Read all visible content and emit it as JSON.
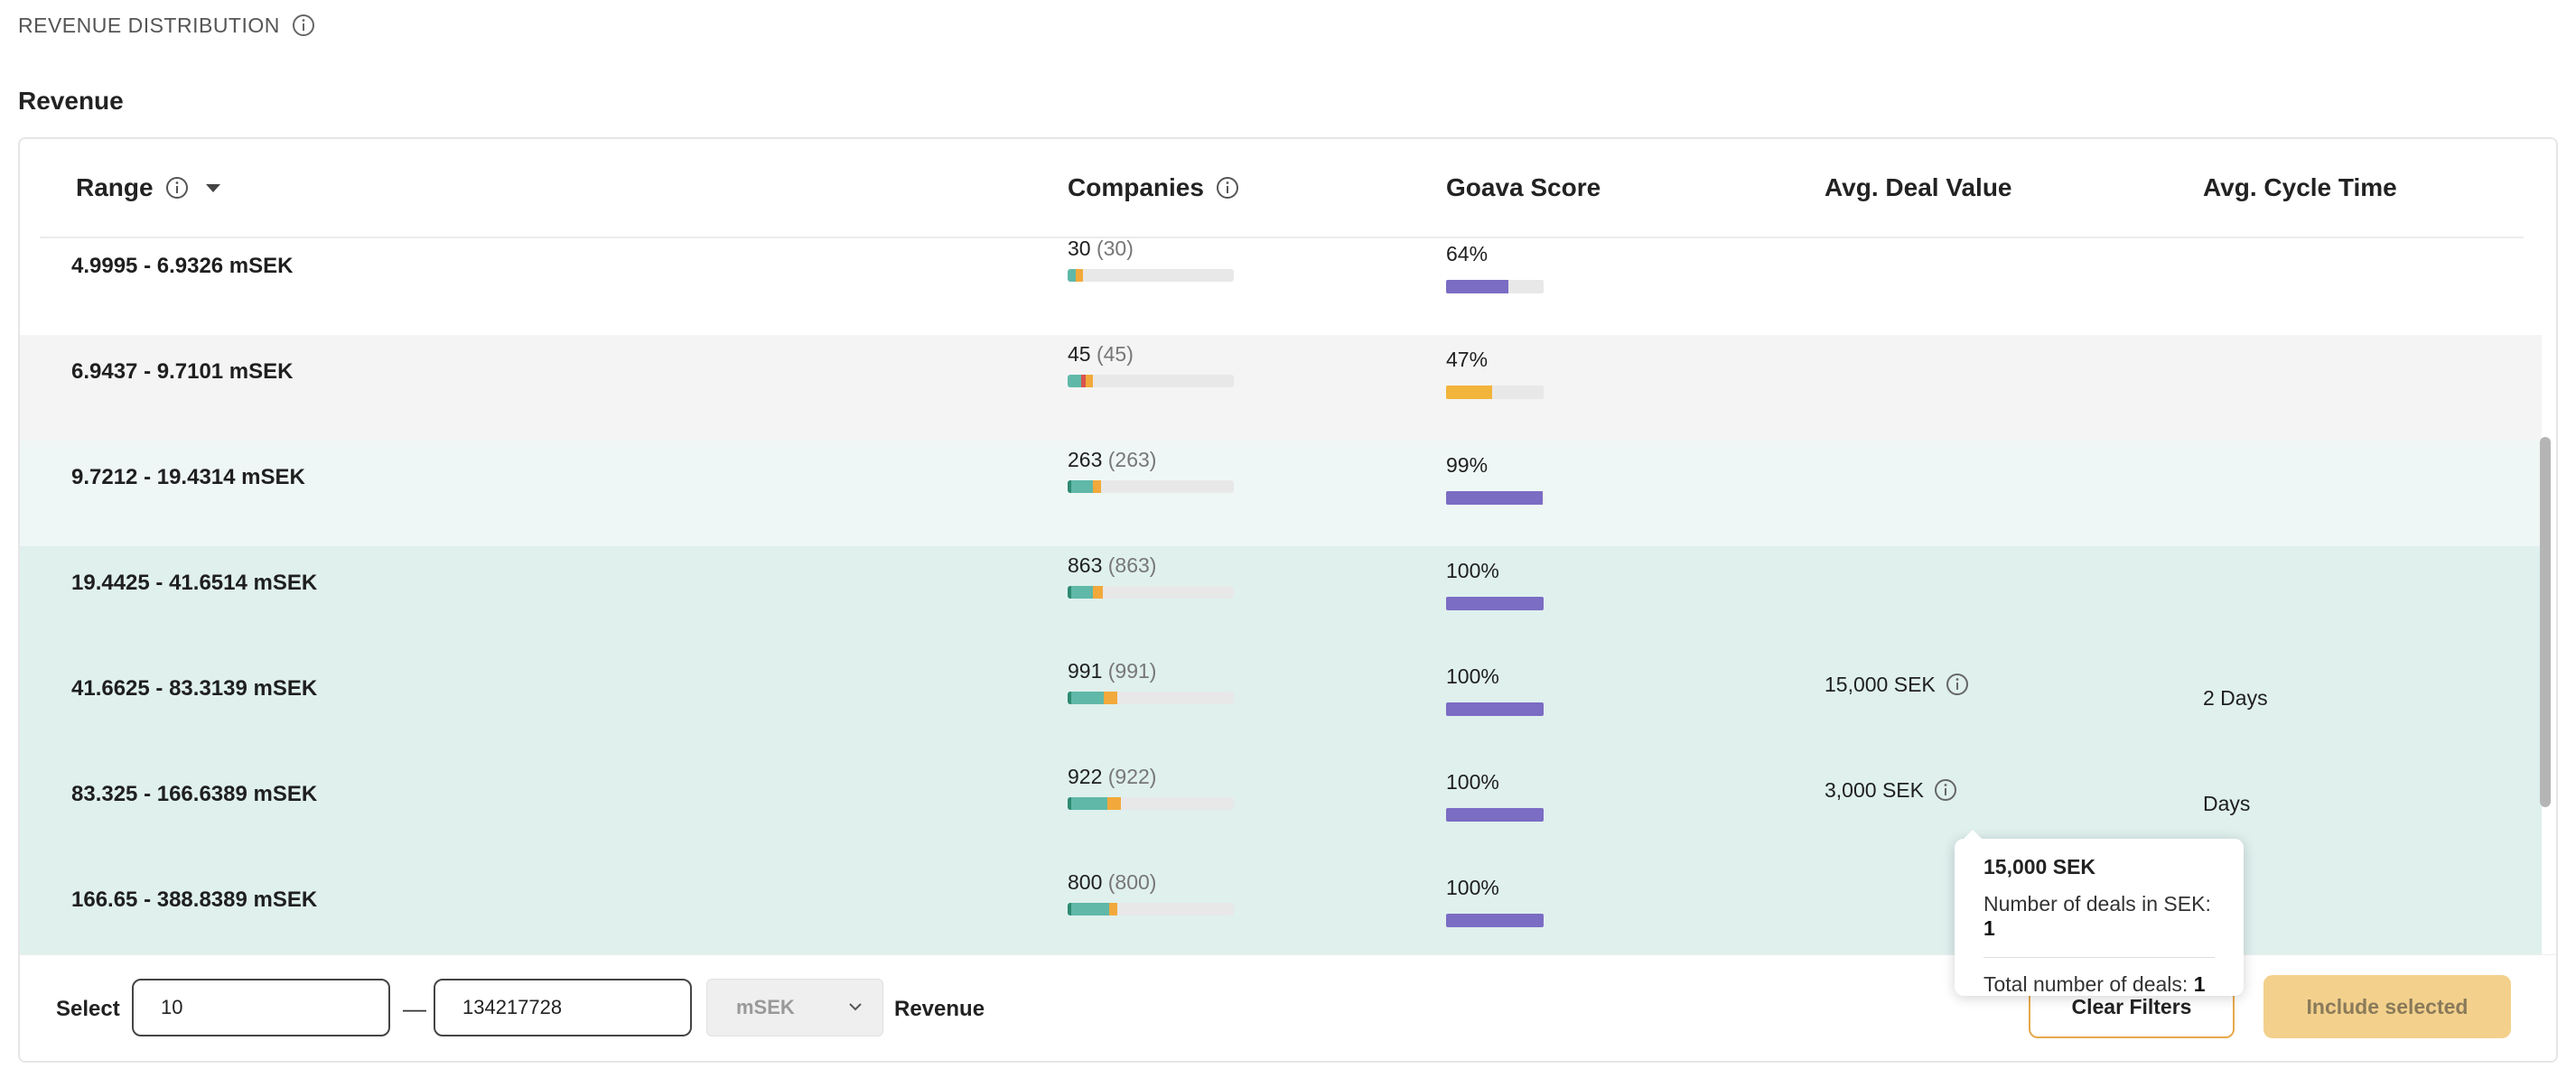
{
  "section": {
    "title": "REVENUE DISTRIBUTION"
  },
  "subtitle": "Revenue",
  "colors": {
    "teal": "#5fb8a8",
    "dark_teal": "#2e8a72",
    "orange": "#f2a93b",
    "red": "#d9534f",
    "purple": "#7b6cc4",
    "score_yellow": "#f2b43a",
    "accent_border": "#e6a94b",
    "primary_btn": "#f3d18c"
  },
  "table": {
    "headers": {
      "range": "Range",
      "companies": "Companies",
      "score": "Goava Score",
      "deal": "Avg. Deal Value",
      "cycle": "Avg. Cycle Time"
    },
    "rows": [
      {
        "range": "4.9995 - 6.9326 mSEK",
        "companies": "30",
        "companies_total": "(30)",
        "bar": [
          {
            "c": "#5fb8a8",
            "v": 0.05
          },
          {
            "c": "#f2a93b",
            "v": 0.04
          }
        ],
        "score": "64%",
        "score_value": 0.64,
        "score_color": "#7b6cc4",
        "deal": "",
        "cycle": "",
        "bg": "#ffffff"
      },
      {
        "range": "6.9437 - 9.7101 mSEK",
        "companies": "45",
        "companies_total": "(45)",
        "bar": [
          {
            "c": "#5fb8a8",
            "v": 0.08
          },
          {
            "c": "#d9534f",
            "v": 0.03
          },
          {
            "c": "#f2a93b",
            "v": 0.04
          }
        ],
        "score": "47%",
        "score_value": 0.47,
        "score_color": "#f2b43a",
        "deal": "",
        "cycle": "",
        "bg": "#f4f4f4"
      },
      {
        "range": "9.7212 - 19.4314 mSEK",
        "companies": "263",
        "companies_total": "(263)",
        "bar": [
          {
            "c": "#2e8a72",
            "v": 0.02
          },
          {
            "c": "#5fb8a8",
            "v": 0.13
          },
          {
            "c": "#f2a93b",
            "v": 0.05
          }
        ],
        "score": "99%",
        "score_value": 0.99,
        "score_color": "#7b6cc4",
        "deal": "",
        "cycle": "",
        "bg": "#eef7f5"
      },
      {
        "range": "19.4425 - 41.6514 mSEK",
        "companies": "863",
        "companies_total": "(863)",
        "bar": [
          {
            "c": "#2e8a72",
            "v": 0.02
          },
          {
            "c": "#5fb8a8",
            "v": 0.13
          },
          {
            "c": "#f2a93b",
            "v": 0.06
          }
        ],
        "score": "100%",
        "score_value": 1.0,
        "score_color": "#7b6cc4",
        "deal": "",
        "cycle": "",
        "bg": "#dff0ed"
      },
      {
        "range": "41.6625 - 83.3139 mSEK",
        "companies": "991",
        "companies_total": "(991)",
        "bar": [
          {
            "c": "#2e8a72",
            "v": 0.02
          },
          {
            "c": "#5fb8a8",
            "v": 0.2
          },
          {
            "c": "#f2a93b",
            "v": 0.08
          }
        ],
        "score": "100%",
        "score_value": 1.0,
        "score_color": "#7b6cc4",
        "deal": "15,000 SEK",
        "cycle": "2 Days",
        "bg": "#dff0ed"
      },
      {
        "range": "83.325 - 166.6389 mSEK",
        "companies": "922",
        "companies_total": "(922)",
        "bar": [
          {
            "c": "#2e8a72",
            "v": 0.02
          },
          {
            "c": "#5fb8a8",
            "v": 0.22
          },
          {
            "c": "#f2a93b",
            "v": 0.08
          }
        ],
        "score": "100%",
        "score_value": 1.0,
        "score_color": "#7b6cc4",
        "deal": "3,000 SEK",
        "cycle": "Days",
        "bg": "#dff0ed"
      },
      {
        "range": "166.65 - 388.8389 mSEK",
        "companies": "800",
        "companies_total": "(800)",
        "bar": [
          {
            "c": "#2e8a72",
            "v": 0.02
          },
          {
            "c": "#5fb8a8",
            "v": 0.23
          },
          {
            "c": "#f2a93b",
            "v": 0.05
          }
        ],
        "score": "100%",
        "score_value": 1.0,
        "score_color": "#7b6cc4",
        "deal": "",
        "cycle": "",
        "bg": "#dff0ed"
      }
    ]
  },
  "tooltip": {
    "title": "15,000 SEK",
    "line1_label": "Number of deals in SEK: ",
    "line1_value": "1",
    "line2_label": "Total number of deals: ",
    "line2_value": "1"
  },
  "footer": {
    "select_label": "Select",
    "min_value": "10",
    "max_value": "134217728",
    "dash": "—",
    "unit": "mSEK",
    "revenue_label": "Revenue",
    "clear_label": "Clear Filters",
    "include_label": "Include selected"
  }
}
